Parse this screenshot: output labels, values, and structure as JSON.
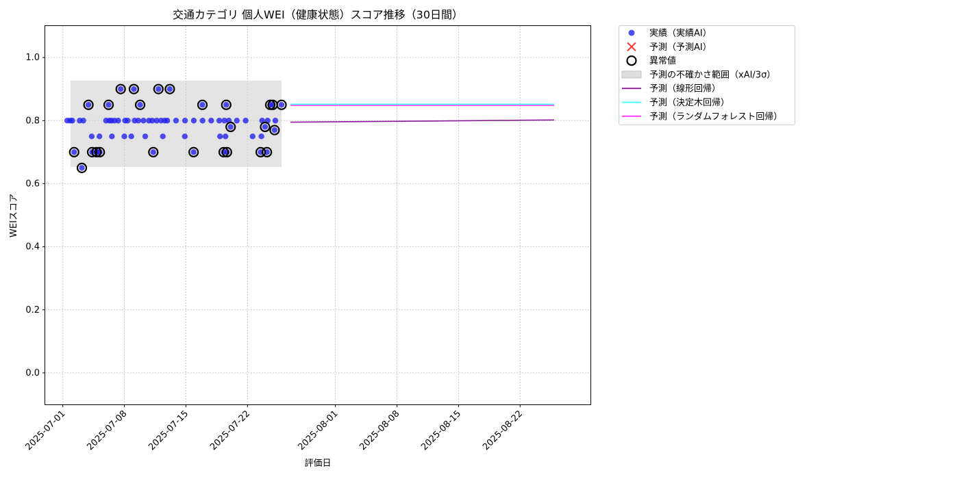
{
  "chart_data": {
    "type": "scatter",
    "title": "交通カテゴリ 個人WEI（健康状態）スコア推移（30日間）",
    "xlabel": "評価日",
    "ylabel": "WEIスコア",
    "ylim": [
      -0.1,
      1.1
    ],
    "xlim": [
      "2025-06-29",
      "2025-08-30"
    ],
    "grid": true,
    "legend_position": "outside-top-right",
    "x_ticks": [
      "2025-07-01",
      "2025-07-08",
      "2025-07-15",
      "2025-07-22",
      "2025-08-01",
      "2025-08-08",
      "2025-08-15",
      "2025-08-22"
    ],
    "y_ticks": [
      "0.0",
      "0.2",
      "0.4",
      "0.6",
      "0.8",
      "1.0"
    ],
    "legend": [
      {
        "label": "実績（実績AI）",
        "marker": "dot",
        "color": "#2222ee"
      },
      {
        "label": "予測（予測AI）",
        "marker": "x",
        "color": "#ff3333"
      },
      {
        "label": "異常値",
        "marker": "ring",
        "color": "#000000"
      },
      {
        "label": "予測の不確かさ範囲（xAI/3σ）",
        "marker": "band",
        "color": "#dddddd"
      },
      {
        "label": "予測（線形回帰）",
        "marker": "line",
        "color": "#8b1a9a"
      },
      {
        "label": "予測（決定木回帰）",
        "marker": "line",
        "color": "#33ffff"
      },
      {
        "label": "予測（ランダムフォレスト回帰）",
        "marker": "line",
        "color": "#ff33ff"
      }
    ],
    "series": [
      {
        "name": "実績（実績AI）",
        "color": "#2222ee",
        "points": [
          [
            "2025-07-01 12:00",
            0.8
          ],
          [
            "2025-07-01 20:00",
            0.8
          ],
          [
            "2025-07-02 02:00",
            0.8
          ],
          [
            "2025-07-02 07:00",
            0.7
          ],
          [
            "2025-07-02 22:00",
            0.8
          ],
          [
            "2025-07-03 08:00",
            0.8
          ],
          [
            "2025-07-03 04:00",
            0.65
          ],
          [
            "2025-07-03 22:00",
            0.85
          ],
          [
            "2025-07-04 07:00",
            0.75
          ],
          [
            "2025-07-04 08:00",
            0.7
          ],
          [
            "2025-07-04 20:00",
            0.7
          ],
          [
            "2025-07-05 02:00",
            0.7
          ],
          [
            "2025-07-05 04:00",
            0.75
          ],
          [
            "2025-07-05 05:00",
            0.7
          ],
          [
            "2025-07-05 22:00",
            0.8
          ],
          [
            "2025-07-06 05:00",
            0.85
          ],
          [
            "2025-07-06 07:00",
            0.8
          ],
          [
            "2025-07-06 14:00",
            0.75
          ],
          [
            "2025-07-06 13:00",
            0.8
          ],
          [
            "2025-07-06 21:00",
            0.8
          ],
          [
            "2025-07-07 07:00",
            0.8
          ],
          [
            "2025-07-07 14:00",
            0.9
          ],
          [
            "2025-07-08 00:00",
            0.75
          ],
          [
            "2025-07-08 02:00",
            0.8
          ],
          [
            "2025-07-08 09:00",
            0.8
          ],
          [
            "2025-07-08 19:00",
            0.75
          ],
          [
            "2025-07-09 02:00",
            0.9
          ],
          [
            "2025-07-09 04:00",
            0.8
          ],
          [
            "2025-07-09 14:00",
            0.8
          ],
          [
            "2025-07-09 19:00",
            0.85
          ],
          [
            "2025-07-10 04:00",
            0.8
          ],
          [
            "2025-07-10 09:00",
            0.75
          ],
          [
            "2025-07-10 19:00",
            0.8
          ],
          [
            "2025-07-11 04:00",
            0.8
          ],
          [
            "2025-07-11 07:00",
            0.7
          ],
          [
            "2025-07-11 16:00",
            0.8
          ],
          [
            "2025-07-11 21:00",
            0.9
          ],
          [
            "2025-07-12 04:00",
            0.8
          ],
          [
            "2025-07-12 09:00",
            0.75
          ],
          [
            "2025-07-12 14:00",
            0.8
          ],
          [
            "2025-07-12 21:00",
            0.8
          ],
          [
            "2025-07-13 04:00",
            0.9
          ],
          [
            "2025-07-13 21:00",
            0.8
          ],
          [
            "2025-07-14 21:00",
            0.75
          ],
          [
            "2025-07-14 21:30",
            0.8
          ],
          [
            "2025-07-15 21:00",
            0.7
          ],
          [
            "2025-07-15 21:30",
            0.8
          ],
          [
            "2025-07-16 21:00",
            0.85
          ],
          [
            "2025-07-16 21:30",
            0.8
          ],
          [
            "2025-07-17 21:00",
            0.8
          ],
          [
            "2025-07-18 19:00",
            0.8
          ],
          [
            "2025-07-18 21:00",
            0.75
          ],
          [
            "2025-07-19 07:00",
            0.7
          ],
          [
            "2025-07-19 09:00",
            0.8
          ],
          [
            "2025-07-19 12:00",
            0.75
          ],
          [
            "2025-07-19 14:00",
            0.85
          ],
          [
            "2025-07-19 16:00",
            0.7
          ],
          [
            "2025-07-19 21:00",
            0.8
          ],
          [
            "2025-07-20 02:00",
            0.78
          ],
          [
            "2025-07-20 19:00",
            0.8
          ],
          [
            "2025-07-21 19:00",
            0.8
          ],
          [
            "2025-07-22 14:00",
            0.75
          ],
          [
            "2025-07-23 12:00",
            0.7
          ],
          [
            "2025-07-23 14:00",
            0.75
          ],
          [
            "2025-07-23 16:00",
            0.8
          ],
          [
            "2025-07-24 00:00",
            0.78
          ],
          [
            "2025-07-24 05:00",
            0.7
          ],
          [
            "2025-07-24 07:00",
            0.8
          ],
          [
            "2025-07-24 14:00",
            0.85
          ],
          [
            "2025-07-24 21:00",
            0.85
          ],
          [
            "2025-07-25 02:00",
            0.77
          ],
          [
            "2025-07-25 04:00",
            0.8
          ],
          [
            "2025-07-25 21:00",
            0.85
          ]
        ]
      },
      {
        "name": "異常値",
        "color": "#000000",
        "points": [
          [
            "2025-07-02 07:00",
            0.7
          ],
          [
            "2025-07-03 04:00",
            0.65
          ],
          [
            "2025-07-03 22:00",
            0.85
          ],
          [
            "2025-07-04 08:00",
            0.7
          ],
          [
            "2025-07-04 20:00",
            0.7
          ],
          [
            "2025-07-05 05:00",
            0.7
          ],
          [
            "2025-07-06 05:00",
            0.85
          ],
          [
            "2025-07-07 14:00",
            0.9
          ],
          [
            "2025-07-09 02:00",
            0.9
          ],
          [
            "2025-07-09 19:00",
            0.85
          ],
          [
            "2025-07-11 07:00",
            0.7
          ],
          [
            "2025-07-11 21:00",
            0.9
          ],
          [
            "2025-07-13 04:00",
            0.9
          ],
          [
            "2025-07-15 21:00",
            0.7
          ],
          [
            "2025-07-16 21:00",
            0.85
          ],
          [
            "2025-07-19 07:00",
            0.7
          ],
          [
            "2025-07-19 14:00",
            0.85
          ],
          [
            "2025-07-19 16:00",
            0.7
          ],
          [
            "2025-07-20 02:00",
            0.78
          ],
          [
            "2025-07-23 12:00",
            0.7
          ],
          [
            "2025-07-24 00:00",
            0.78
          ],
          [
            "2025-07-24 05:00",
            0.7
          ],
          [
            "2025-07-24 14:00",
            0.85
          ],
          [
            "2025-07-24 21:00",
            0.85
          ],
          [
            "2025-07-25 02:00",
            0.77
          ],
          [
            "2025-07-25 21:00",
            0.85
          ]
        ]
      }
    ],
    "band": {
      "x": [
        "2025-07-01 21:00",
        "2025-07-25 21:00"
      ],
      "y": [
        0.653,
        0.927
      ]
    },
    "lines": [
      {
        "name": "予測（線形回帰）",
        "color": "#8b1a9a",
        "x": [
          "2025-07-26 21:00",
          "2025-08-25 21:00"
        ],
        "y": [
          0.795,
          0.802
        ]
      },
      {
        "name": "予測（決定木回帰）",
        "color": "#33ffff",
        "x": [
          "2025-07-26 21:00",
          "2025-08-25 21:00"
        ],
        "y": [
          0.852,
          0.852
        ]
      },
      {
        "name": "予測（ランダムフォレスト回帰）",
        "color": "#ff33ff",
        "x": [
          "2025-07-26 21:00",
          "2025-08-25 21:00"
        ],
        "y": [
          0.848,
          0.848
        ]
      }
    ]
  }
}
